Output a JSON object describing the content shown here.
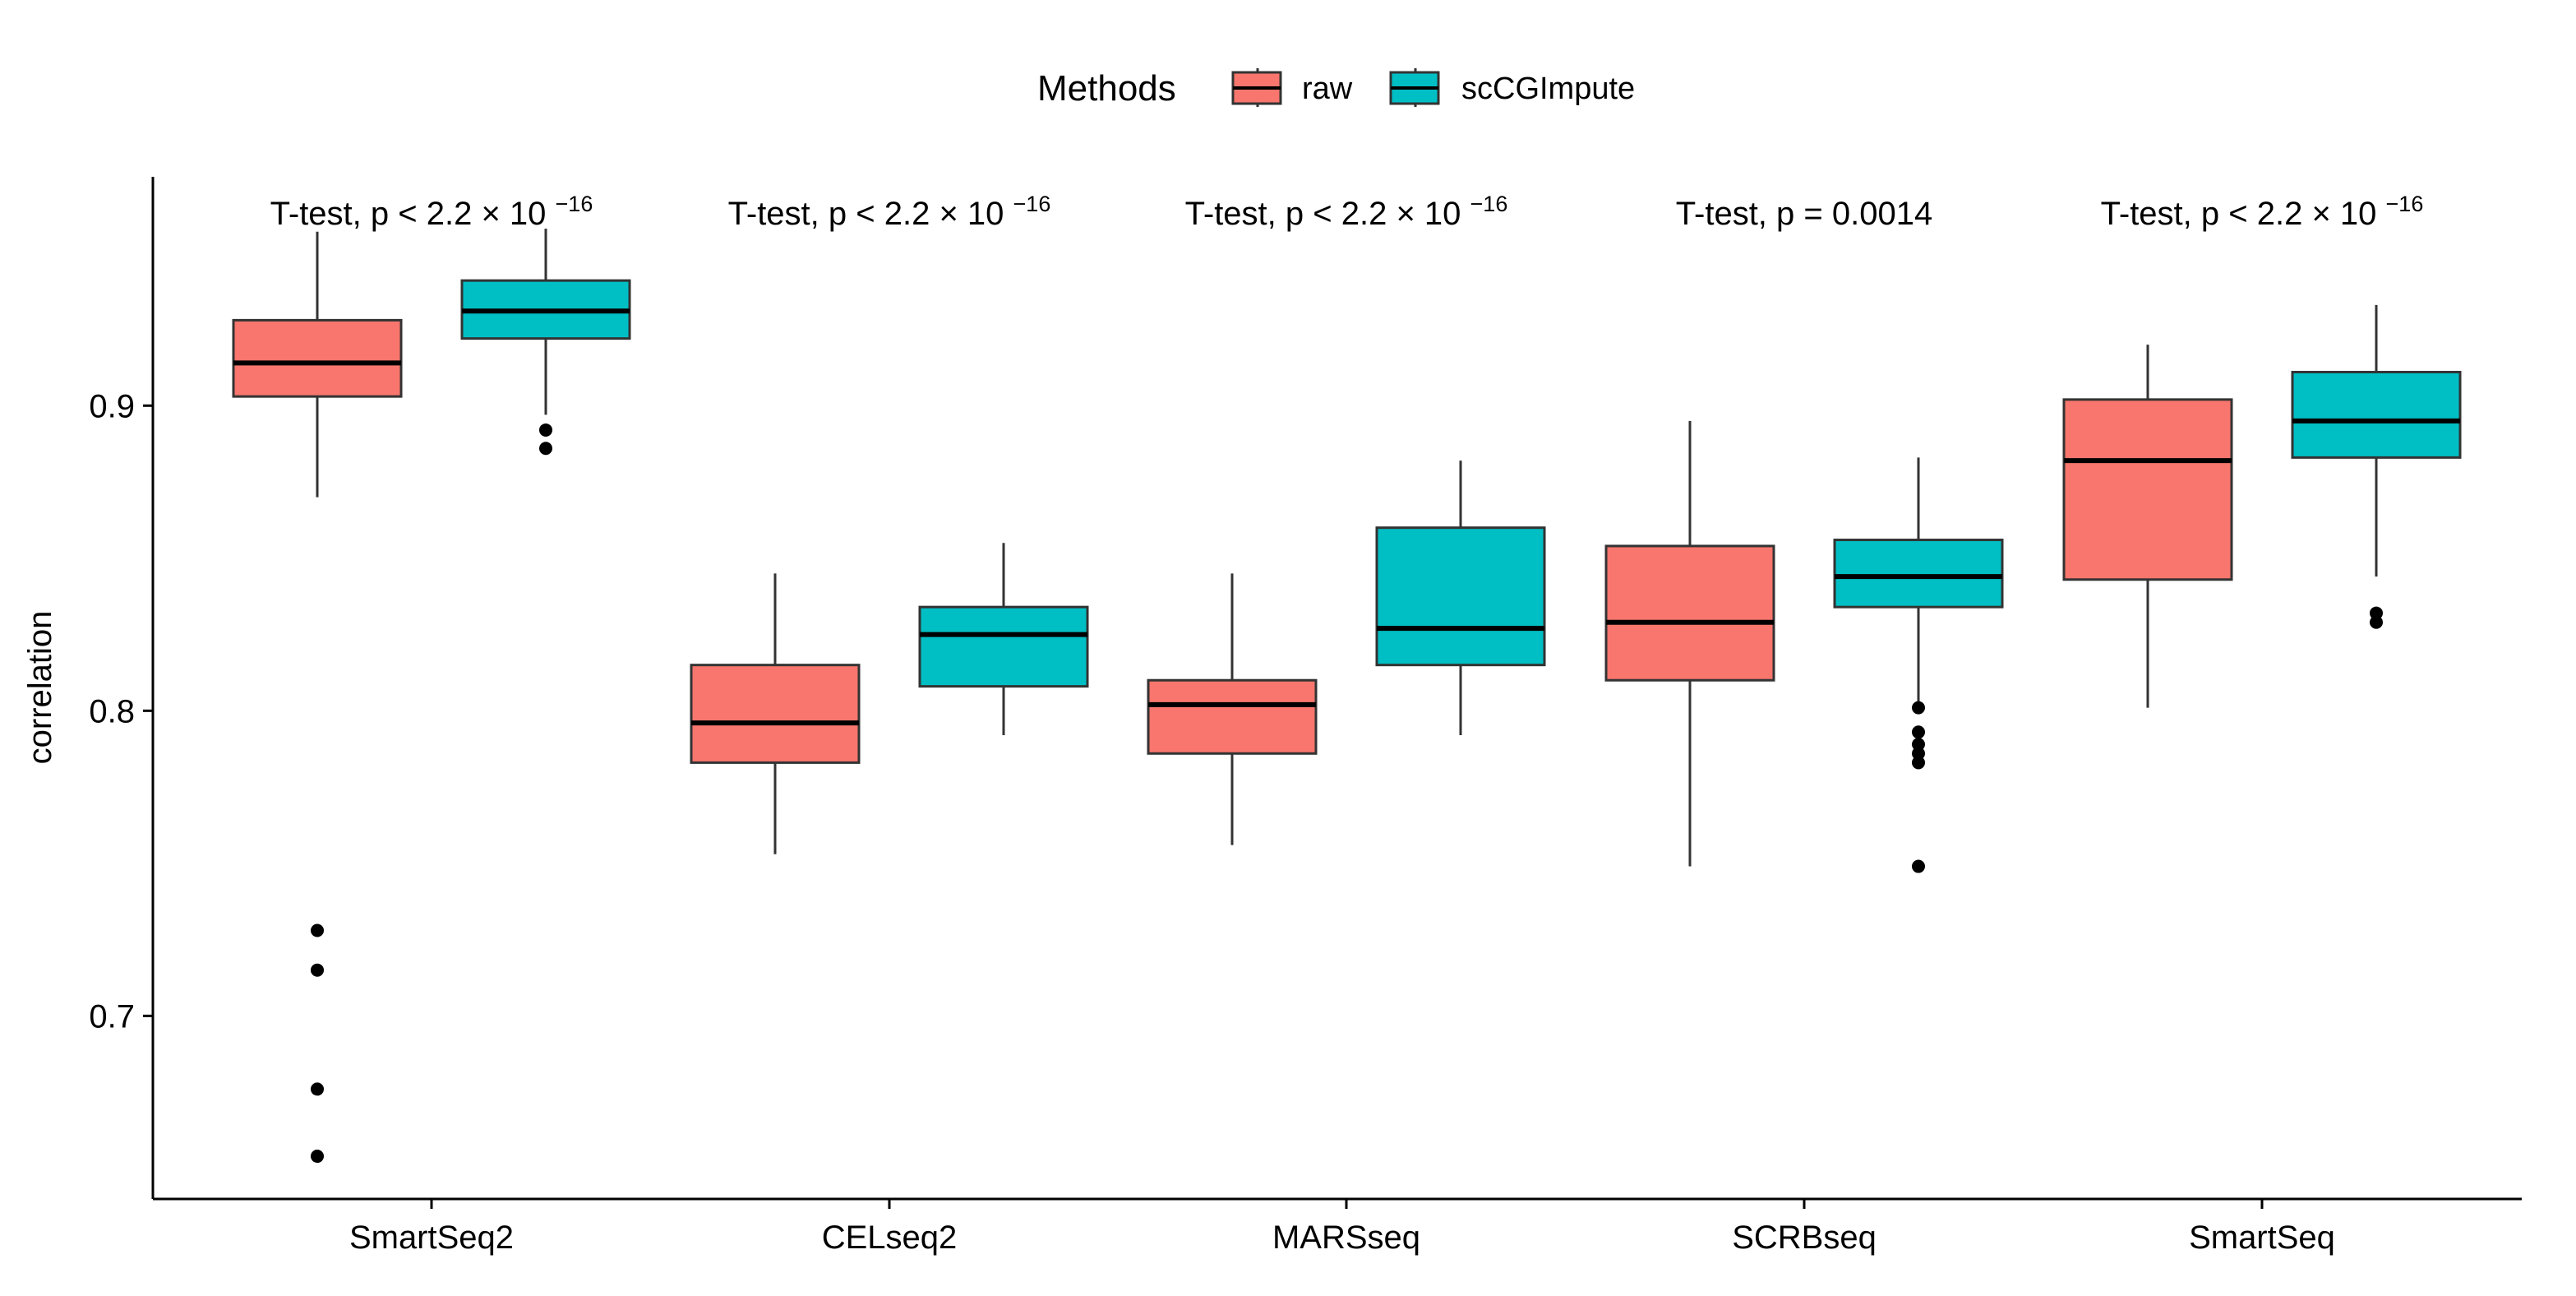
{
  "chart_data": {
    "type": "boxplot",
    "title": "",
    "xlabel": "",
    "ylabel": "correlation",
    "ylim": [
      0.64,
      0.975
    ],
    "yticks": [
      0.7,
      0.8,
      0.9
    ],
    "ytick_labels": [
      "0.7",
      "0.8",
      "0.9"
    ],
    "categories": [
      "SmartSeq2",
      "CELseq2",
      "MARSseq",
      "SCRBseq",
      "SmartSeq"
    ],
    "legend": {
      "title": "Methods",
      "position": "top",
      "entries": [
        {
          "name": "raw",
          "color": "#F8766D"
        },
        {
          "name": "scCGImpute",
          "color": "#00BFC4"
        }
      ]
    },
    "series": [
      {
        "name": "raw",
        "color": "#F8766D",
        "boxes": [
          {
            "min": 0.87,
            "q1": 0.903,
            "median": 0.914,
            "q3": 0.928,
            "max": 0.957,
            "outliers": [
              0.728,
              0.715,
              0.676,
              0.654
            ]
          },
          {
            "min": 0.753,
            "q1": 0.783,
            "median": 0.796,
            "q3": 0.815,
            "max": 0.845,
            "outliers": []
          },
          {
            "min": 0.756,
            "q1": 0.786,
            "median": 0.802,
            "q3": 0.81,
            "max": 0.845,
            "outliers": []
          },
          {
            "min": 0.749,
            "q1": 0.81,
            "median": 0.829,
            "q3": 0.854,
            "max": 0.895,
            "outliers": []
          },
          {
            "min": 0.801,
            "q1": 0.843,
            "median": 0.882,
            "q3": 0.902,
            "max": 0.92,
            "outliers": []
          }
        ]
      },
      {
        "name": "scCGImpute",
        "color": "#00BFC4",
        "boxes": [
          {
            "min": 0.897,
            "q1": 0.922,
            "median": 0.931,
            "q3": 0.941,
            "max": 0.958,
            "outliers": [
              0.892,
              0.886
            ]
          },
          {
            "min": 0.792,
            "q1": 0.808,
            "median": 0.825,
            "q3": 0.834,
            "max": 0.855,
            "outliers": []
          },
          {
            "min": 0.792,
            "q1": 0.815,
            "median": 0.827,
            "q3": 0.86,
            "max": 0.882,
            "outliers": []
          },
          {
            "min": 0.803,
            "q1": 0.834,
            "median": 0.844,
            "q3": 0.856,
            "max": 0.883,
            "outliers": [
              0.801,
              0.793,
              0.789,
              0.786,
              0.783,
              0.749
            ]
          },
          {
            "min": 0.844,
            "q1": 0.883,
            "median": 0.895,
            "q3": 0.911,
            "max": 0.933,
            "outliers": [
              0.832,
              0.829
            ]
          }
        ]
      }
    ],
    "annotations": [
      {
        "group": "SmartSeq2",
        "prefix": "T-test, p < 2.2 × 10",
        "exponent": "−16"
      },
      {
        "group": "CELseq2",
        "prefix": "T-test, p < 2.2 × 10",
        "exponent": "−16"
      },
      {
        "group": "MARSseq",
        "prefix": "T-test, p < 2.2 × 10",
        "exponent": "−16"
      },
      {
        "group": "SCRBseq",
        "prefix": "T-test, p = 0.0014",
        "exponent": ""
      },
      {
        "group": "SmartSeq",
        "prefix": "T-test, p < 2.2 × 10",
        "exponent": "−16"
      }
    ]
  }
}
